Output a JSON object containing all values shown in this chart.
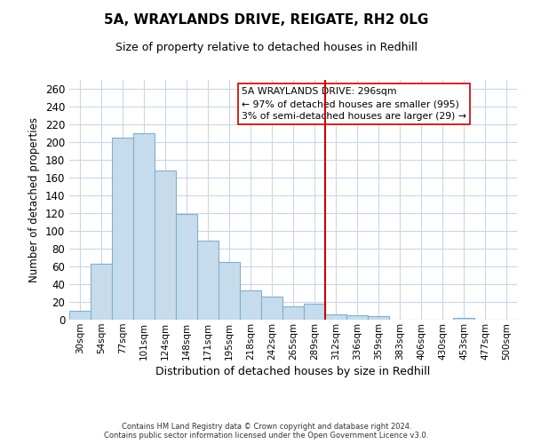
{
  "title": "5A, WRAYLANDS DRIVE, REIGATE, RH2 0LG",
  "subtitle": "Size of property relative to detached houses in Redhill",
  "xlabel": "Distribution of detached houses by size in Redhill",
  "ylabel": "Number of detached properties",
  "bin_labels": [
    "30sqm",
    "54sqm",
    "77sqm",
    "101sqm",
    "124sqm",
    "148sqm",
    "171sqm",
    "195sqm",
    "218sqm",
    "242sqm",
    "265sqm",
    "289sqm",
    "312sqm",
    "336sqm",
    "359sqm",
    "383sqm",
    "406sqm",
    "430sqm",
    "453sqm",
    "477sqm",
    "500sqm"
  ],
  "bar_heights": [
    10,
    63,
    205,
    210,
    168,
    119,
    89,
    65,
    33,
    26,
    15,
    18,
    6,
    5,
    4,
    0,
    0,
    0,
    2,
    0,
    0
  ],
  "bar_color": "#c6dcec",
  "bar_edge_color": "#7fb0d0",
  "vline_x": 11.5,
  "vline_color": "#cc0000",
  "annotation_text": "5A WRAYLANDS DRIVE: 296sqm\n← 97% of detached houses are smaller (995)\n3% of semi-detached houses are larger (29) →",
  "ylim": [
    0,
    270
  ],
  "yticks": [
    0,
    20,
    40,
    60,
    80,
    100,
    120,
    140,
    160,
    180,
    200,
    220,
    240,
    260
  ],
  "footer_line1": "Contains HM Land Registry data © Crown copyright and database right 2024.",
  "footer_line2": "Contains public sector information licensed under the Open Government Licence v3.0.",
  "background_color": "#ffffff",
  "grid_color": "#c8d8e8"
}
